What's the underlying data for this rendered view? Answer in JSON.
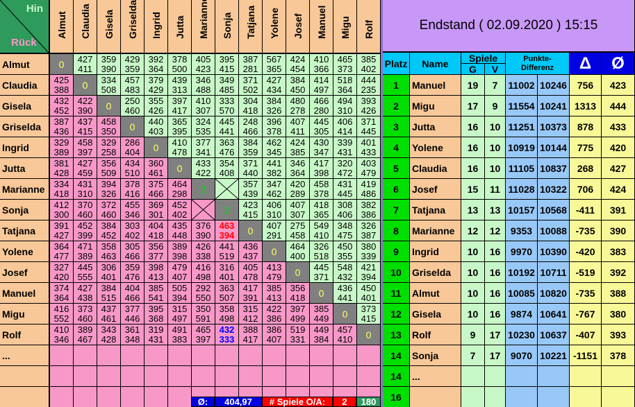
{
  "corner": {
    "hin": "Hin",
    "rueck": "Rück"
  },
  "players": [
    "Almut",
    "Claudia",
    "Gisela",
    "Griselda",
    "Ingrid",
    "Jutta",
    "Marianne",
    "Sonja",
    "Tatjana",
    "Yolene",
    "Josef",
    "Manuel",
    "Migu",
    "Rolf"
  ],
  "extra_rows": [
    "...",
    "",
    ""
  ],
  "matrix": [
    [
      "0",
      [
        427,
        411
      ],
      [
        359,
        390
      ],
      [
        429,
        359
      ],
      [
        392,
        364
      ],
      [
        378,
        500
      ],
      [
        405,
        423
      ],
      [
        395,
        415
      ],
      [
        387,
        281
      ],
      [
        567,
        365
      ],
      [
        424,
        454
      ],
      [
        410,
        366
      ],
      [
        465,
        373
      ],
      [
        385,
        402
      ]
    ],
    [
      [
        425,
        388
      ],
      "0",
      [
        334,
        508
      ],
      [
        457,
        483
      ],
      [
        379,
        429
      ],
      [
        439,
        313
      ],
      [
        346,
        488
      ],
      [
        349,
        485
      ],
      [
        371,
        502
      ],
      [
        427,
        434
      ],
      [
        384,
        450
      ],
      [
        414,
        497
      ],
      [
        518,
        364
      ],
      [
        444,
        235
      ]
    ],
    [
      [
        432,
        452
      ],
      [
        422,
        390
      ],
      "0",
      [
        250,
        460
      ],
      [
        355,
        426
      ],
      [
        397,
        417
      ],
      [
        410,
        307
      ],
      [
        333,
        570
      ],
      [
        304,
        418
      ],
      [
        384,
        326
      ],
      [
        480,
        278
      ],
      [
        466,
        280
      ],
      [
        494,
        310
      ],
      [
        393,
        426
      ]
    ],
    [
      [
        387,
        436
      ],
      [
        437,
        415
      ],
      [
        458,
        350
      ],
      "0",
      [
        440,
        403
      ],
      [
        365,
        395
      ],
      [
        324,
        535
      ],
      [
        445,
        441
      ],
      [
        248,
        466
      ],
      [
        396,
        378
      ],
      [
        407,
        411
      ],
      [
        445,
        305
      ],
      [
        406,
        414
      ],
      [
        371,
        445
      ]
    ],
    [
      [
        329,
        389
      ],
      [
        458,
        397
      ],
      [
        329,
        258
      ],
      [
        286,
        404
      ],
      "0",
      [
        410,
        478
      ],
      [
        377,
        341
      ],
      [
        363,
        476
      ],
      [
        384,
        359
      ],
      [
        462,
        345
      ],
      [
        424,
        385
      ],
      [
        430,
        347
      ],
      [
        339,
        431
      ],
      [
        401,
        433
      ]
    ],
    [
      [
        381,
        428
      ],
      [
        427,
        459
      ],
      [
        356,
        509
      ],
      [
        434,
        510
      ],
      [
        360,
        461
      ],
      "0",
      [
        433,
        422
      ],
      [
        354,
        408
      ],
      [
        371,
        440
      ],
      [
        441,
        382
      ],
      [
        346,
        364
      ],
      [
        417,
        398
      ],
      [
        320,
        472
      ],
      [
        403,
        479
      ]
    ],
    [
      [
        334,
        418
      ],
      [
        431,
        310
      ],
      [
        394,
        326
      ],
      [
        378,
        416
      ],
      [
        375,
        466
      ],
      [
        464,
        298
      ],
      "2",
      "X",
      [
        357,
        439
      ],
      [
        347,
        462
      ],
      [
        420,
        289
      ],
      [
        458,
        378
      ],
      [
        431,
        445
      ],
      [
        419,
        486
      ]
    ],
    [
      [
        412,
        300
      ],
      [
        370,
        460
      ],
      [
        372,
        460
      ],
      [
        455,
        346
      ],
      [
        369,
        301
      ],
      [
        452,
        402
      ],
      "X",
      "2",
      [
        423,
        415
      ],
      [
        406,
        310
      ],
      [
        407,
        307
      ],
      [
        418,
        365
      ],
      [
        308,
        406
      ],
      [
        382,
        386
      ]
    ],
    [
      [
        391,
        427
      ],
      [
        452,
        399
      ],
      [
        384,
        452
      ],
      [
        303,
        402
      ],
      [
        404,
        418
      ],
      [
        435,
        448
      ],
      [
        376,
        390
      ],
      [
        463,
        394
      ],
      "0",
      [
        407,
        291
      ],
      [
        275,
        458
      ],
      [
        549,
        410
      ],
      [
        348,
        475
      ],
      [
        326,
        387
      ]
    ],
    [
      [
        364,
        477
      ],
      [
        471,
        389
      ],
      [
        358,
        463
      ],
      [
        305,
        466
      ],
      [
        356,
        377
      ],
      [
        389,
        398
      ],
      [
        426,
        338
      ],
      [
        441,
        519
      ],
      [
        436,
        437
      ],
      "0",
      [
        464,
        400
      ],
      [
        326,
        518
      ],
      [
        450,
        355
      ],
      [
        380,
        339
      ]
    ],
    [
      [
        327,
        420
      ],
      [
        445,
        555
      ],
      [
        306,
        401
      ],
      [
        359,
        476
      ],
      [
        398,
        413
      ],
      [
        479,
        407
      ],
      [
        416,
        498
      ],
      [
        316,
        401
      ],
      [
        405,
        478
      ],
      [
        413,
        479
      ],
      "0",
      [
        445,
        371
      ],
      [
        548,
        432
      ],
      [
        421,
        394
      ]
    ],
    [
      [
        374,
        364
      ],
      [
        427,
        438
      ],
      [
        384,
        515
      ],
      [
        404,
        466
      ],
      [
        385,
        541
      ],
      [
        505,
        394
      ],
      [
        292,
        550
      ],
      [
        363,
        507
      ],
      [
        417,
        391
      ],
      [
        385,
        413
      ],
      [
        356,
        418
      ],
      "0",
      [
        436,
        441
      ],
      [
        450,
        401
      ]
    ],
    [
      [
        416,
        552
      ],
      [
        373,
        460
      ],
      [
        437,
        461
      ],
      [
        377,
        446
      ],
      [
        395,
        368
      ],
      [
        315,
        497
      ],
      [
        350,
        591
      ],
      [
        358,
        498
      ],
      [
        315,
        412
      ],
      [
        422,
        386
      ],
      [
        397,
        499
      ],
      [
        385,
        449
      ],
      "0",
      [
        373,
        415
      ]
    ],
    [
      [
        410,
        346
      ],
      [
        389,
        467
      ],
      [
        343,
        428
      ],
      [
        361,
        348
      ],
      [
        319,
        431
      ],
      [
        491,
        383
      ],
      [
        465,
        397
      ],
      [
        432,
        333
      ],
      [
        388,
        417
      ],
      [
        386,
        407
      ],
      [
        519,
        331
      ],
      [
        449,
        384
      ],
      [
        457,
        410
      ],
      "0"
    ]
  ],
  "highlights": [
    {
      "row": 8,
      "col": 7,
      "color": "#ff0000"
    },
    {
      "row": 13,
      "col": 7,
      "color": "#0000ff"
    }
  ],
  "footer": {
    "avg_label": "Ø:",
    "avg_value": "404,97",
    "games_label": "# Spiele O/A:",
    "open": "2",
    "total": "180"
  },
  "standings": {
    "title": "Endstand ( 02.09.2020 ) 15:15",
    "headers": {
      "platz": "Platz",
      "name": "Name",
      "spiele": "Spiele",
      "g": "G",
      "v": "V",
      "punkte": "Punkte-",
      "differenz": "Differenz",
      "delta": "Δ",
      "avg": "Ø"
    },
    "rows": [
      [
        "1",
        "Manuel",
        "19",
        "7",
        "11002",
        "10246",
        "756",
        "423"
      ],
      [
        "2",
        "Migu",
        "17",
        "9",
        "11554",
        "10241",
        "1313",
        "444"
      ],
      [
        "3",
        "Jutta",
        "16",
        "10",
        "11251",
        "10373",
        "878",
        "433"
      ],
      [
        "4",
        "Yolene",
        "16",
        "10",
        "10919",
        "10144",
        "775",
        "420"
      ],
      [
        "5",
        "Claudia",
        "16",
        "10",
        "11105",
        "10837",
        "268",
        "427"
      ],
      [
        "6",
        "Josef",
        "15",
        "11",
        "11028",
        "10322",
        "706",
        "424"
      ],
      [
        "7",
        "Tatjana",
        "13",
        "13",
        "10157",
        "10568",
        "-411",
        "391"
      ],
      [
        "8",
        "Marianne",
        "12",
        "12",
        "9353",
        "10088",
        "-735",
        "390"
      ],
      [
        "9",
        "Ingrid",
        "10",
        "16",
        "9970",
        "10390",
        "-420",
        "383"
      ],
      [
        "10",
        "Griselda",
        "10",
        "16",
        "10192",
        "10711",
        "-519",
        "392"
      ],
      [
        "11",
        "Almut",
        "10",
        "16",
        "10085",
        "10820",
        "-735",
        "388"
      ],
      [
        "12",
        "Gisela",
        "10",
        "16",
        "9874",
        "10641",
        "-767",
        "380"
      ],
      [
        "13",
        "Rolf",
        "9",
        "17",
        "10230",
        "10637",
        "-407",
        "393"
      ],
      [
        "14",
        "Sonja",
        "7",
        "17",
        "9070",
        "10221",
        "-1151",
        "378"
      ],
      [
        "14",
        "...",
        "",
        "",
        "",
        "",
        "",
        ""
      ],
      [
        "16",
        "",
        "",
        "",
        "",
        "",
        "",
        ""
      ]
    ]
  },
  "colors": {
    "upper": "#c8f8c8",
    "lower": "#f898c8",
    "name": "#f8c898",
    "diag": "#808080",
    "corner": "#2e9a5c",
    "title": "#c898f8",
    "header": "#00c8f8",
    "delta_header": "#0000e0",
    "platz": "#00e000",
    "spiele": "#c8f8c8",
    "punkte": "#98c8f8",
    "stats": "#f8f898"
  }
}
